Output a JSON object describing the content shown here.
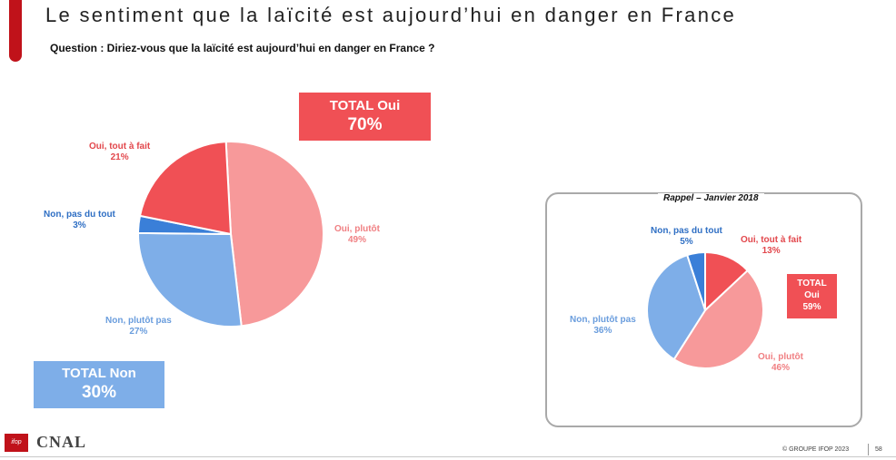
{
  "header": {
    "title": "Le sentiment que la laïcité est aujourd’hui en danger en France",
    "question": "Question : Diriez-vous que la laïcité est aujourd’hui en danger en France ?"
  },
  "colors": {
    "oui_tout_a_fait": "#f05055",
    "oui_plutot": "#f7999a",
    "non_plutot_pas": "#7eaee8",
    "non_pas_du_tout": "#3a7fd8",
    "accent": "#c0121a"
  },
  "chart_data": [
    {
      "type": "pie",
      "slices": [
        {
          "label": "Oui, plutôt",
          "value": 49,
          "value_text": "49%"
        },
        {
          "label": "Non, plutôt pas",
          "value": 27,
          "value_text": "27%"
        },
        {
          "label": "Non, pas du tout",
          "value": 3,
          "value_text": "3%"
        },
        {
          "label": "Oui, tout à fait",
          "value": 21,
          "value_text": "21%"
        }
      ],
      "totals": {
        "yes": {
          "label": "TOTAL Oui",
          "value_text": "70%"
        },
        "no": {
          "label": "TOTAL Non",
          "value_text": "30%"
        }
      }
    },
    {
      "type": "pie",
      "title": "Rappel – Janvier 2018",
      "slices": [
        {
          "label": "Oui, tout à fait",
          "value": 13,
          "value_text": "13%"
        },
        {
          "label": "Oui, plutôt",
          "value": 46,
          "value_text": "46%"
        },
        {
          "label": "Non, plutôt pas",
          "value": 36,
          "value_text": "36%"
        },
        {
          "label": "Non, pas du tout",
          "value": 5,
          "value_text": "5%"
        }
      ],
      "totals": {
        "yes": {
          "label_line1": "TOTAL",
          "label_line2": "Oui",
          "value_text": "59%"
        }
      }
    }
  ],
  "footer": {
    "copyright": "© GROUPE IFOP 2023",
    "page_number": "58",
    "logo_ifop": "ifop",
    "logo_cnal": "CNAL"
  }
}
